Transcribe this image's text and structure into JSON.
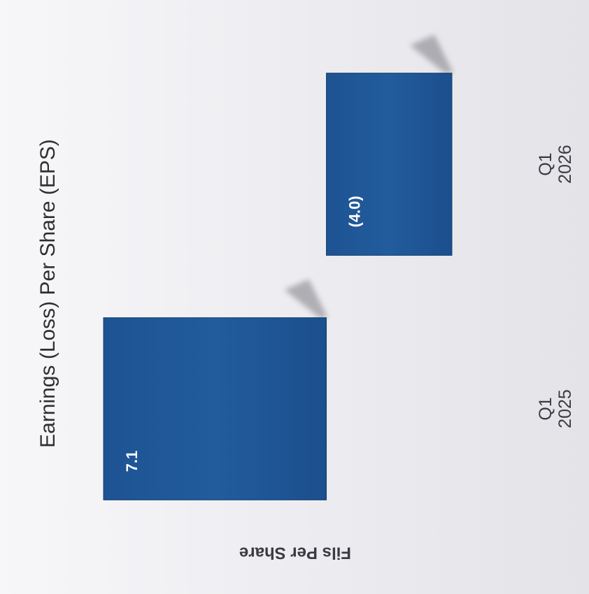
{
  "chart_data": {
    "type": "bar",
    "title": "Earnings (Loss) Per Share (EPS)",
    "ylabel": "Fils Per Share",
    "xlabel": "",
    "categories": [
      "Q1 2026",
      "Q1 2025"
    ],
    "category_lines": [
      [
        "Q1",
        "2026"
      ],
      [
        "Q1",
        "2025"
      ]
    ],
    "values": [
      -4.0,
      7.1
    ],
    "value_labels": [
      "(4.0)",
      "7.1"
    ],
    "ylim": [
      -4.0,
      7.1
    ],
    "grid": false,
    "legend": "none",
    "colors": {
      "bar": "#1e5897",
      "bar_edge": "#173f6f",
      "shadow": "#7c7c82",
      "text": "#3a3a40",
      "label": "#ffffff"
    },
    "orientation": "rotated-90-clockwise"
  }
}
